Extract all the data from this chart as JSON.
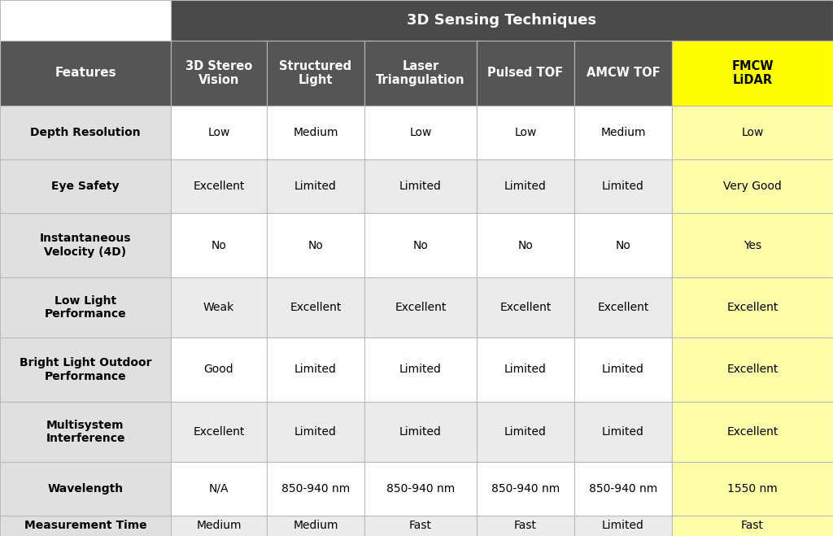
{
  "title": "3D Sensing Techniques",
  "title_bg": "#4a4a4a",
  "title_color": "#ffffff",
  "header_bg": "#555555",
  "header_color": "#ffffff",
  "feature_col_bg": "#e0e0e0",
  "feature_col_color": "#000000",
  "data_bg_even": "#ffffff",
  "data_bg_odd": "#ebebeb",
  "data_color": "#000000",
  "fmcw_header_bg": "#ffff00",
  "fmcw_data_bg": "#ffffaa",
  "fmcw_color": "#000000",
  "grid_color": "#bbbbbb",
  "features": [
    "Depth Resolution",
    "Eye Safety",
    "Instantaneous\nVelocity (4D)",
    "Low Light\nPerformance",
    "Bright Light Outdoor\nPerformance",
    "Multisystem\nInterference",
    "Wavelength",
    "Measurement Time"
  ],
  "columns": [
    "3D Stereo\nVision",
    "Structured\nLight",
    "Laser\nTriangulation",
    "Pulsed TOF",
    "AMCW TOF",
    "FMCW\nLiDAR"
  ],
  "data": [
    [
      "Low",
      "Medium",
      "Low",
      "Low",
      "Medium",
      "Low"
    ],
    [
      "Excellent",
      "Limited",
      "Limited",
      "Limited",
      "Limited",
      "Very Good"
    ],
    [
      "No",
      "No",
      "No",
      "No",
      "No",
      "Yes"
    ],
    [
      "Weak",
      "Excellent",
      "Excellent",
      "Excellent",
      "Excellent",
      "Excellent"
    ],
    [
      "Good",
      "Limited",
      "Limited",
      "Limited",
      "Limited",
      "Excellent"
    ],
    [
      "Excellent",
      "Limited",
      "Limited",
      "Limited",
      "Limited",
      "Excellent"
    ],
    [
      "N/A",
      "850-940 nm",
      "850-940 nm",
      "850-940 nm",
      "850-940 nm",
      "1550 nm"
    ],
    [
      "Medium",
      "Medium",
      "Fast",
      "Fast",
      "Limited",
      "Fast"
    ]
  ]
}
